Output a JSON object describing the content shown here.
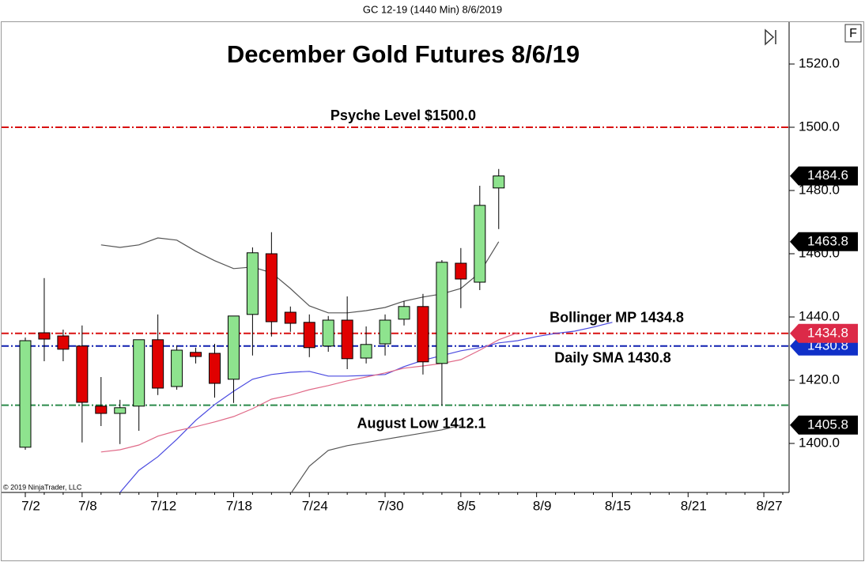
{
  "chart_data": {
    "type": "candlestick",
    "header": "GC 12-19 (1440 Min)  8/6/2019",
    "title": "December Gold Futures 8/6/19",
    "copyright": "© 2019 NinjaTrader, LLC",
    "corner_button": "F",
    "categories": [
      "7/2",
      null,
      null,
      "7/8",
      null,
      null,
      null,
      "7/12",
      null,
      null,
      null,
      "7/18",
      null,
      null,
      null,
      "7/24",
      null,
      null,
      null,
      "7/30",
      null,
      null,
      null,
      "8/5",
      null,
      null,
      null,
      "8/9",
      null,
      null,
      null,
      "8/15",
      null,
      null,
      null,
      "8/21",
      null,
      null,
      null,
      "8/27",
      null
    ],
    "open": [
      1398.8,
      1435,
      1434,
      1430.8,
      1411.8,
      1409.5,
      1411.8,
      1432.8,
      1418,
      1428.8,
      1428.5,
      1420.3,
      1440.8,
      1460,
      1441.5,
      1438.3,
      1430.8,
      1439,
      1427,
      1431.5,
      1439.3,
      1443.3,
      1425.3,
      1457,
      1451,
      1480.8,
      null,
      null,
      null,
      null,
      null,
      null,
      null,
      null,
      null,
      null,
      null,
      null,
      null,
      null,
      null
    ],
    "high": [
      1433.5,
      1452.3,
      1436,
      1437.3,
      1421,
      1413.8,
      1432.8,
      1440.8,
      1431,
      1430.3,
      1431.5,
      1440.3,
      1462,
      1466.8,
      1443.3,
      1440.8,
      1440.3,
      1446.5,
      1437,
      1440.8,
      1445,
      1447.3,
      1458,
      1461.8,
      1481.5,
      1486.8,
      null,
      null,
      null,
      null,
      null,
      null,
      null,
      null,
      null,
      null,
      null,
      null,
      null,
      null,
      null
    ],
    "low": [
      1398,
      1426,
      1426,
      1400.3,
      1405.5,
      1399.8,
      1404,
      1415.3,
      1417,
      1425.3,
      1414.5,
      1412.8,
      1427.8,
      1433.8,
      1435.3,
      1427.3,
      1429,
      1423.5,
      1425.3,
      1427.8,
      1437.3,
      1421.8,
      1412,
      1442.8,
      1448.5,
      1467.8,
      null,
      null,
      null,
      null,
      null,
      null,
      null,
      null,
      null,
      null,
      null,
      null,
      null,
      null,
      null
    ],
    "close": [
      1432.5,
      1433,
      1429.8,
      1413,
      1409.5,
      1411.3,
      1432.8,
      1417.5,
      1429.5,
      1427.5,
      1419,
      1440.3,
      1460.3,
      1438.5,
      1438,
      1430.3,
      1439,
      1426.8,
      1431.3,
      1439,
      1443.3,
      1425.8,
      1457.3,
      1452,
      1475.3,
      1484.6,
      null,
      null,
      null,
      null,
      null,
      null,
      null,
      null,
      null,
      null,
      null,
      null,
      null,
      null,
      null
    ],
    "up_color": "#8ee38e",
    "down_color": "#e00000",
    "lines": [
      {
        "color": "#555555",
        "values": [
          null,
          null,
          null,
          null,
          1462.8,
          1462,
          1462.8,
          1465,
          1464.3,
          1460.8,
          1457.8,
          1455.3,
          1455.8,
          1454,
          1449,
          1443.5,
          1441.3,
          1441.3,
          1442,
          1443,
          1445,
          1446.3,
          1447.3,
          1449,
          1454,
          1463.8,
          null,
          null,
          null,
          null,
          null,
          null,
          null,
          null,
          null,
          null,
          null,
          null,
          null,
          null,
          null
        ]
      },
      {
        "color": "#555555",
        "values": [
          null,
          null,
          null,
          null,
          null,
          null,
          null,
          null,
          null,
          null,
          null,
          null,
          null,
          null,
          1384,
          1392.8,
          1397.8,
          1399.3,
          1400.3,
          1401.3,
          1402.3,
          1403.3,
          1404.3,
          1405.8,
          null,
          null,
          null,
          null,
          null,
          null,
          null,
          null,
          null,
          null,
          null,
          null,
          null,
          null,
          null,
          null,
          null
        ]
      },
      {
        "color": "#4a4ae0",
        "values": [
          null,
          null,
          null,
          null,
          null,
          1384.5,
          1391.5,
          1395.8,
          1401.3,
          1407.3,
          1412.3,
          1416.5,
          1420.3,
          1421.8,
          1422.5,
          1422.8,
          1421.3,
          1421.3,
          1421.5,
          1421.8,
          1424.3,
          1426.3,
          1427.8,
          1429.3,
          1430.3,
          1431.8,
          1432.5,
          1433.8,
          1434.8,
          1435.5,
          1436.8,
          1438.3,
          null,
          null,
          null,
          null,
          null,
          null,
          null,
          null,
          null
        ]
      },
      {
        "color": "#e06a88",
        "values": [
          null,
          null,
          null,
          null,
          1397.3,
          1398,
          1399.5,
          1402.3,
          1404,
          1405.3,
          1406.8,
          1408.5,
          1411,
          1414,
          1415.3,
          1417,
          1418.3,
          1419.8,
          1421,
          1422.3,
          1423.8,
          1424.5,
          1425.3,
          1426.5,
          1429.5,
          1432.8,
          1435,
          null,
          null,
          null,
          null,
          null,
          null,
          null,
          null,
          null,
          null,
          null,
          null,
          null,
          null
        ]
      }
    ],
    "levels": [
      {
        "value": 1500,
        "color": "#d81010",
        "label": "Psyche Level $1500.0"
      },
      {
        "value": 1434.8,
        "color": "#d81010",
        "label": "Bollinger MP 1434.8"
      },
      {
        "value": 1430.8,
        "color": "#1020b0",
        "label": "Daily SMA 1430.8"
      },
      {
        "value": 1412.1,
        "color": "#2a8a4a",
        "label": "August Low 1412.1"
      }
    ],
    "price_markers": [
      {
        "value": 1484.6,
        "label": "1484.6",
        "color": "#000000"
      },
      {
        "value": 1463.8,
        "label": "1463.8",
        "color": "#000000"
      },
      {
        "value": 1430.8,
        "label": "1430.8",
        "color": "#1030c8"
      },
      {
        "value": 1434.8,
        "label": "1434.8",
        "color": "#dc2a48"
      },
      {
        "value": 1405.8,
        "label": "1405.8",
        "color": "#000000"
      }
    ],
    "ylim": [
      1384.5,
      1533.25
    ],
    "yticks": [
      {
        "value": 1400,
        "label": "1400.0"
      },
      {
        "value": 1420,
        "label": "1420.0"
      },
      {
        "value": 1440,
        "label": "1440.0"
      },
      {
        "value": 1460,
        "label": "1460.0"
      },
      {
        "value": 1480,
        "label": "1480.0"
      },
      {
        "value": 1500,
        "label": "1500.0"
      },
      {
        "value": 1520,
        "label": "1520.0"
      }
    ],
    "grid": false
  }
}
